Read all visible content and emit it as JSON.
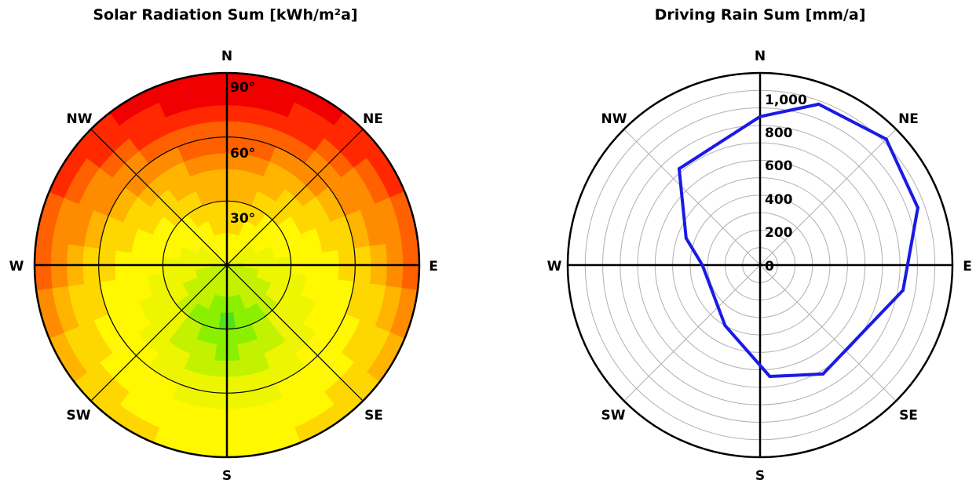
{
  "chart_data": [
    {
      "type": "heatmap",
      "projection": "polar",
      "title": "Solar Radiation Sum [kWh/m²a]",
      "directions": [
        "N",
        "NE",
        "E",
        "SE",
        "S",
        "SW",
        "W",
        "NW"
      ],
      "azimuth_bins_deg": [
        0,
        15,
        30,
        45,
        60,
        75,
        90,
        105,
        120,
        135,
        150,
        165,
        180,
        195,
        210,
        225,
        240,
        255,
        270,
        285,
        300,
        315,
        330,
        345
      ],
      "tilt_rings_deg": [
        7.5,
        15,
        22.5,
        30,
        37.5,
        45,
        52.5,
        60,
        67.5,
        75,
        82.5,
        90
      ],
      "tilt_labels": [
        "30°",
        "60°",
        "90°"
      ],
      "color_levels": [
        "#55e01e",
        "#8af000",
        "#c2f200",
        "#eef500",
        "#fff800",
        "#ffd700",
        "#ffb400",
        "#ff8c00",
        "#ff6000",
        "#ff2800",
        "#f00000"
      ],
      "level_grid": [
        [
          4,
          4,
          5,
          5,
          6,
          6,
          7,
          8,
          8,
          9,
          10,
          10
        ],
        [
          4,
          4,
          5,
          5,
          6,
          6,
          7,
          8,
          8,
          9,
          10,
          10
        ],
        [
          4,
          4,
          4,
          5,
          5,
          6,
          6,
          7,
          8,
          9,
          9,
          10
        ],
        [
          3,
          4,
          4,
          4,
          5,
          5,
          6,
          7,
          7,
          8,
          9,
          9
        ],
        [
          3,
          3,
          4,
          4,
          4,
          5,
          5,
          6,
          7,
          7,
          8,
          9
        ],
        [
          3,
          3,
          3,
          4,
          4,
          4,
          5,
          5,
          6,
          7,
          7,
          8
        ],
        [
          2,
          3,
          3,
          3,
          4,
          4,
          4,
          5,
          5,
          6,
          7,
          8
        ],
        [
          2,
          2,
          3,
          3,
          3,
          4,
          4,
          4,
          5,
          5,
          6,
          7
        ],
        [
          2,
          2,
          2,
          3,
          3,
          3,
          4,
          4,
          4,
          5,
          5,
          6
        ],
        [
          2,
          2,
          2,
          2,
          3,
          3,
          3,
          4,
          4,
          4,
          5,
          5
        ],
        [
          2,
          2,
          2,
          1,
          2,
          2,
          3,
          3,
          4,
          4,
          4,
          5
        ],
        [
          2,
          2,
          1,
          1,
          1,
          2,
          2,
          3,
          3,
          4,
          4,
          4
        ],
        [
          2,
          2,
          1,
          0,
          1,
          1,
          2,
          3,
          3,
          4,
          4,
          4
        ],
        [
          2,
          2,
          1,
          1,
          1,
          2,
          2,
          3,
          3,
          4,
          4,
          4
        ],
        [
          2,
          2,
          2,
          1,
          2,
          2,
          3,
          3,
          4,
          4,
          4,
          5
        ],
        [
          2,
          2,
          2,
          2,
          3,
          3,
          3,
          4,
          4,
          4,
          5,
          5
        ],
        [
          2,
          2,
          2,
          3,
          3,
          3,
          4,
          4,
          4,
          5,
          5,
          6
        ],
        [
          2,
          2,
          3,
          3,
          3,
          4,
          4,
          4,
          5,
          5,
          6,
          7
        ],
        [
          2,
          3,
          3,
          3,
          4,
          4,
          4,
          5,
          5,
          6,
          7,
          8
        ],
        [
          3,
          3,
          3,
          4,
          4,
          4,
          5,
          5,
          6,
          7,
          7,
          8
        ],
        [
          3,
          3,
          4,
          4,
          4,
          5,
          5,
          6,
          7,
          7,
          8,
          9
        ],
        [
          3,
          4,
          4,
          4,
          5,
          5,
          6,
          7,
          7,
          8,
          9,
          9
        ],
        [
          4,
          4,
          4,
          5,
          5,
          6,
          6,
          7,
          8,
          9,
          9,
          10
        ],
        [
          4,
          4,
          5,
          5,
          6,
          6,
          7,
          8,
          8,
          9,
          10,
          10
        ]
      ]
    },
    {
      "type": "line",
      "projection": "polar",
      "title": "Driving Rain Sum [mm/a]",
      "directions": [
        "N",
        "NE",
        "E",
        "SE",
        "S",
        "SW",
        "W",
        "NW"
      ],
      "radial_ticks": [
        "0",
        "200",
        "400",
        "600",
        "800",
        "1,000"
      ],
      "radial_tick_values": [
        0,
        200,
        400,
        600,
        800,
        1000
      ],
      "r_max": 1100,
      "grid_rings": [
        100,
        200,
        300,
        400,
        500,
        600,
        700,
        800,
        900,
        1000,
        1100
      ],
      "line_color": "#1a1ae6",
      "series": [
        {
          "azimuth_deg": [
            0,
            20,
            45,
            70,
            100,
            150,
            175,
            210,
            245,
            270,
            290,
            320
          ],
          "values": [
            850,
            980,
            1020,
            960,
            830,
            720,
            640,
            400,
            310,
            330,
            450,
            720
          ]
        }
      ]
    }
  ]
}
